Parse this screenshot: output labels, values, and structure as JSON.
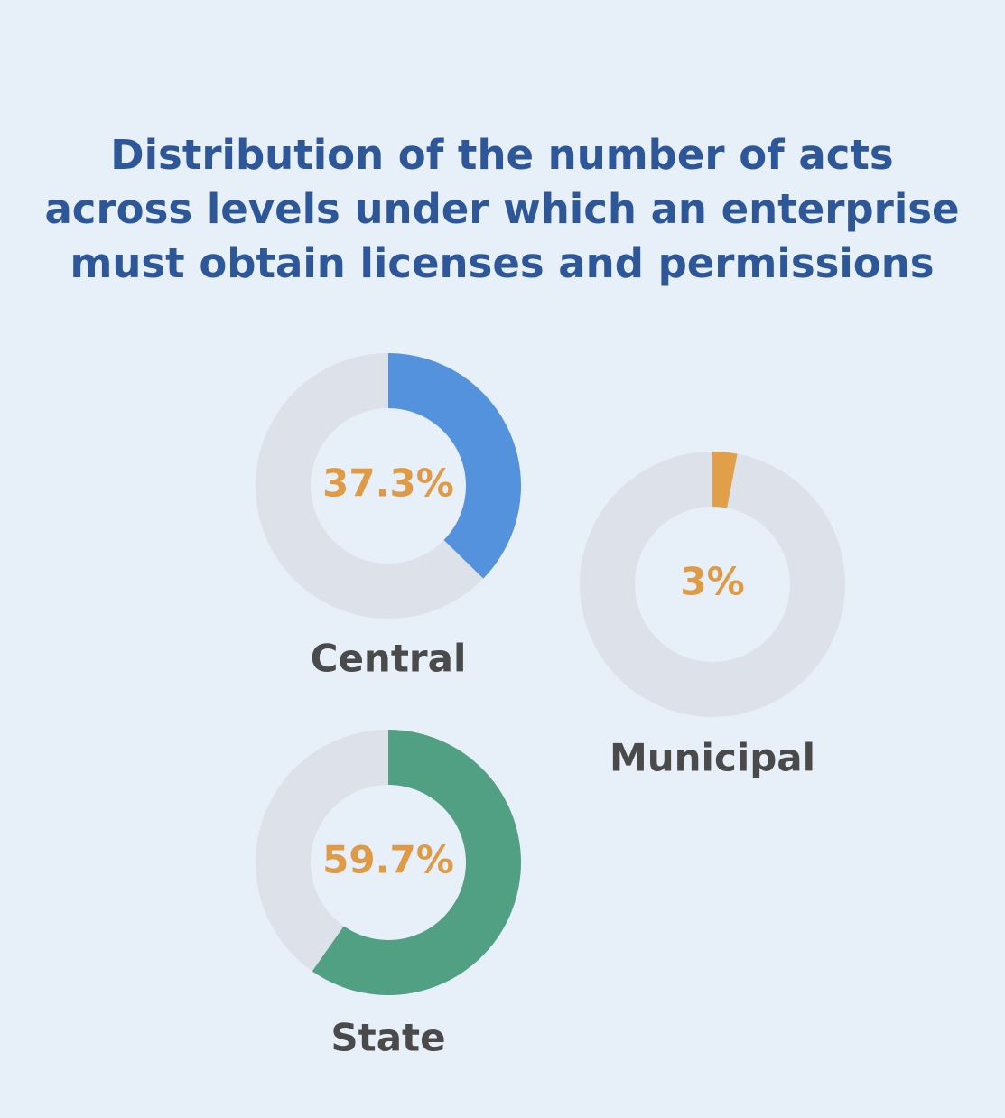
{
  "chart_data": {
    "type": "donut",
    "title": [
      "Distribution of the number of acts",
      "across levels under which an enterprise",
      "must obtain licenses and permissions"
    ],
    "categories": [
      "Central",
      "Municipal",
      "State"
    ],
    "values": [
      37.3,
      3,
      59.7
    ],
    "value_labels": [
      "37.3%",
      "3%",
      "59.7%"
    ],
    "colors": [
      "#5592dd",
      "#e09f48",
      "#51a084"
    ],
    "track_color": "#dde1ea"
  }
}
